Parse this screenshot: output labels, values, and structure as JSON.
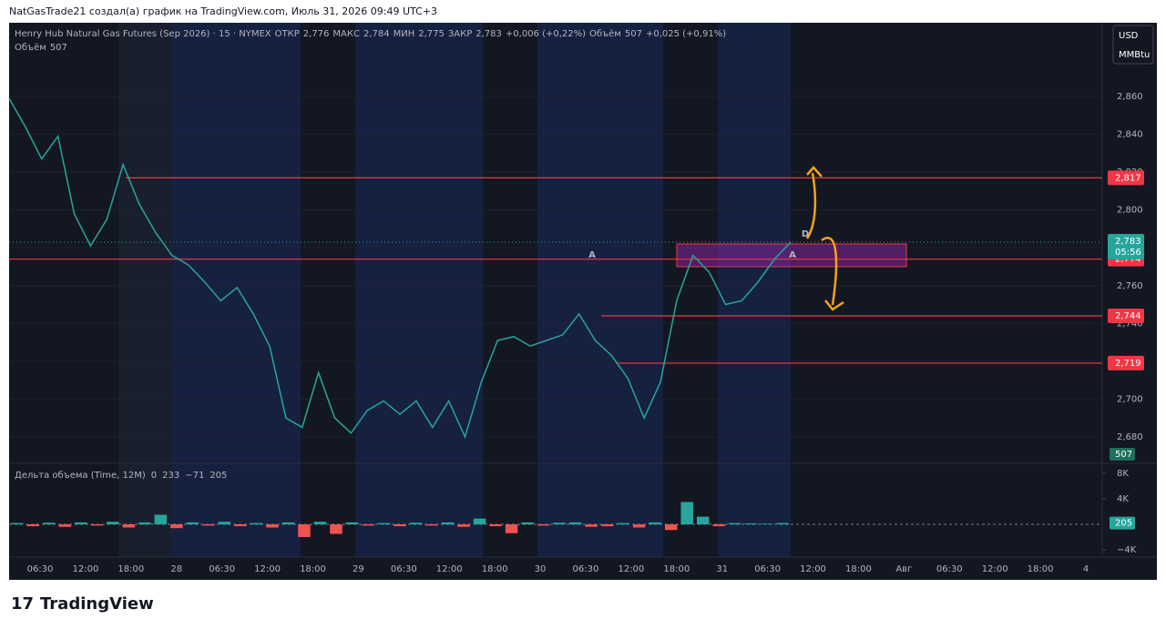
{
  "header": {
    "text": "NatGasTrade21 создал(а) график на TradingView.com, Июль 31, 2026 09:49 UTC+3"
  },
  "footer": {
    "brand": "TradingView"
  },
  "currency": {
    "unit": "USD",
    "measure": "MMBtu"
  },
  "legend": {
    "title": "Henry Hub Natural Gas Futures (Sep 2026) · 15 · NYMEX",
    "items": [
      {
        "label": "ОТКР",
        "value": "2,776"
      },
      {
        "label": "МАКС",
        "value": "2,784"
      },
      {
        "label": "МИН",
        "value": "2,775"
      },
      {
        "label": "ЗАКР",
        "value": "2,783"
      }
    ],
    "change": "+0,006 (+0,22%)",
    "volume_label": "Объём",
    "volume": "507",
    "volume_change": "+0,025 (+0,91%)",
    "row2_label": "Объём",
    "row2_value": "507"
  },
  "chart_data": [
    {
      "type": "line",
      "color": "#26a69a",
      "values": [
        2.859,
        2.844,
        2.827,
        2.839,
        2.798,
        2.781,
        2.795,
        2.824,
        2.803,
        2.788,
        2.776,
        2.771,
        2.762,
        2.752,
        2.759,
        2.745,
        2.728,
        2.69,
        2.685,
        2.714,
        2.69,
        2.682,
        2.694,
        2.699,
        2.692,
        2.699,
        2.685,
        2.699,
        2.68,
        2.709,
        2.731,
        2.733,
        2.728,
        2.731,
        2.734,
        2.745,
        2.731,
        2.723,
        2.711,
        2.69,
        2.709,
        2.752,
        2.776,
        2.767,
        2.75,
        2.752,
        2.762,
        2.774,
        2.783
      ],
      "ylim": [
        2.6665,
        2.899
      ],
      "yticks": [
        {
          "value": 2.68,
          "label": "2,680"
        },
        {
          "value": 2.7,
          "label": "2,700"
        },
        {
          "value": 2.72,
          "label": "2,720"
        },
        {
          "value": 2.74,
          "label": "2,740"
        },
        {
          "value": 2.76,
          "label": "2,760"
        },
        {
          "value": 2.78,
          "label": "2,780"
        },
        {
          "value": 2.8,
          "label": "2,800"
        },
        {
          "value": 2.82,
          "label": "2,820"
        },
        {
          "value": 2.84,
          "label": "2,840"
        },
        {
          "value": 2.86,
          "label": "2,860"
        }
      ],
      "xtick_labels": [
        "06:30",
        "12:00",
        "18:00",
        "28",
        "06:30",
        "12:00",
        "18:00",
        "29",
        "06:30",
        "12:00",
        "18:00",
        "30",
        "06:30",
        "12:00",
        "18:00",
        "31",
        "06:30",
        "12:00",
        "18:00",
        "Авг",
        "06:30",
        "12:00",
        "18:00",
        "4"
      ],
      "levels": [
        {
          "value": 2.817,
          "label": "2,817"
        },
        {
          "value": 2.774,
          "label": "2,774"
        },
        {
          "value": 2.744,
          "label": "2,744"
        },
        {
          "value": 2.719,
          "label": "2,719"
        }
      ],
      "level_color": "#f23645",
      "zone": {
        "low": 2.77,
        "high": 2.782
      },
      "last": {
        "value": 2.783,
        "label": "2,783",
        "countdown": "05:56"
      },
      "volume_last": 507,
      "annotations": [
        "A",
        "A",
        "D"
      ]
    },
    {
      "type": "bar",
      "title": "Дельта объема (Time, 12M)",
      "stats": [
        "0",
        "233",
        "−71",
        "205"
      ],
      "up_color": "#26a69a",
      "down_color": "#ef5350",
      "values": [
        200,
        -300,
        250,
        -400,
        300,
        -200,
        400,
        -500,
        300,
        1500,
        -600,
        300,
        -200,
        400,
        -300,
        200,
        -500,
        300,
        -2000,
        400,
        -1500,
        300,
        -200,
        200,
        -300,
        250,
        -200,
        300,
        -400,
        900,
        -300,
        -1400,
        300,
        -200,
        250,
        300,
        -400,
        -300,
        200,
        -500,
        300,
        -900,
        3500,
        1200,
        -300,
        200,
        150,
        100,
        205
      ],
      "ylim": [
        -5143,
        9429
      ],
      "yticks": [
        {
          "value": 8000,
          "label": "8K"
        },
        {
          "value": 4000,
          "label": "4K"
        },
        {
          "value": -4000,
          "label": "−4K"
        }
      ],
      "last": 205
    }
  ]
}
